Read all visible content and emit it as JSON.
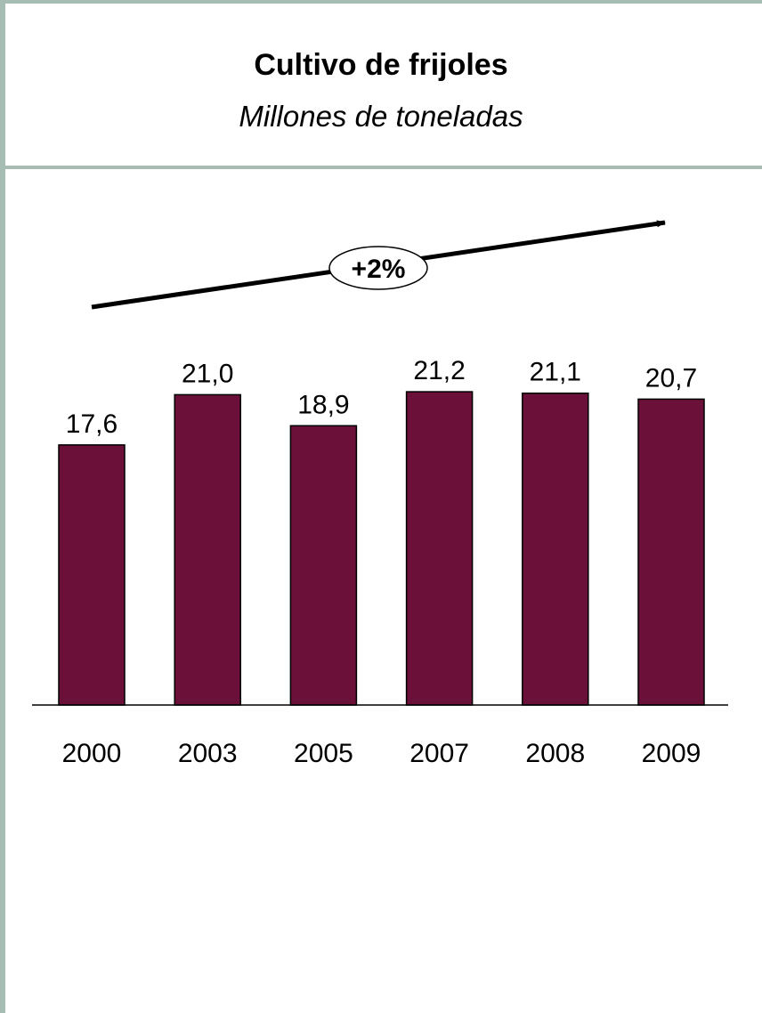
{
  "chart_data": {
    "type": "bar",
    "title": "Cultivo de frijoles",
    "subtitle": "Millones de toneladas",
    "categories": [
      "2000",
      "2003",
      "2005",
      "2007",
      "2008",
      "2009"
    ],
    "values": [
      17.6,
      21.0,
      18.9,
      21.2,
      21.1,
      20.7
    ],
    "value_labels": [
      "17,6",
      "21,0",
      "18,9",
      "21,2",
      "21,1",
      "20,7"
    ],
    "ylim": [
      0,
      24
    ],
    "grid": false,
    "bar_color": "#6a1039",
    "annotation": {
      "label": "+2%",
      "type": "trend-arrow"
    }
  }
}
